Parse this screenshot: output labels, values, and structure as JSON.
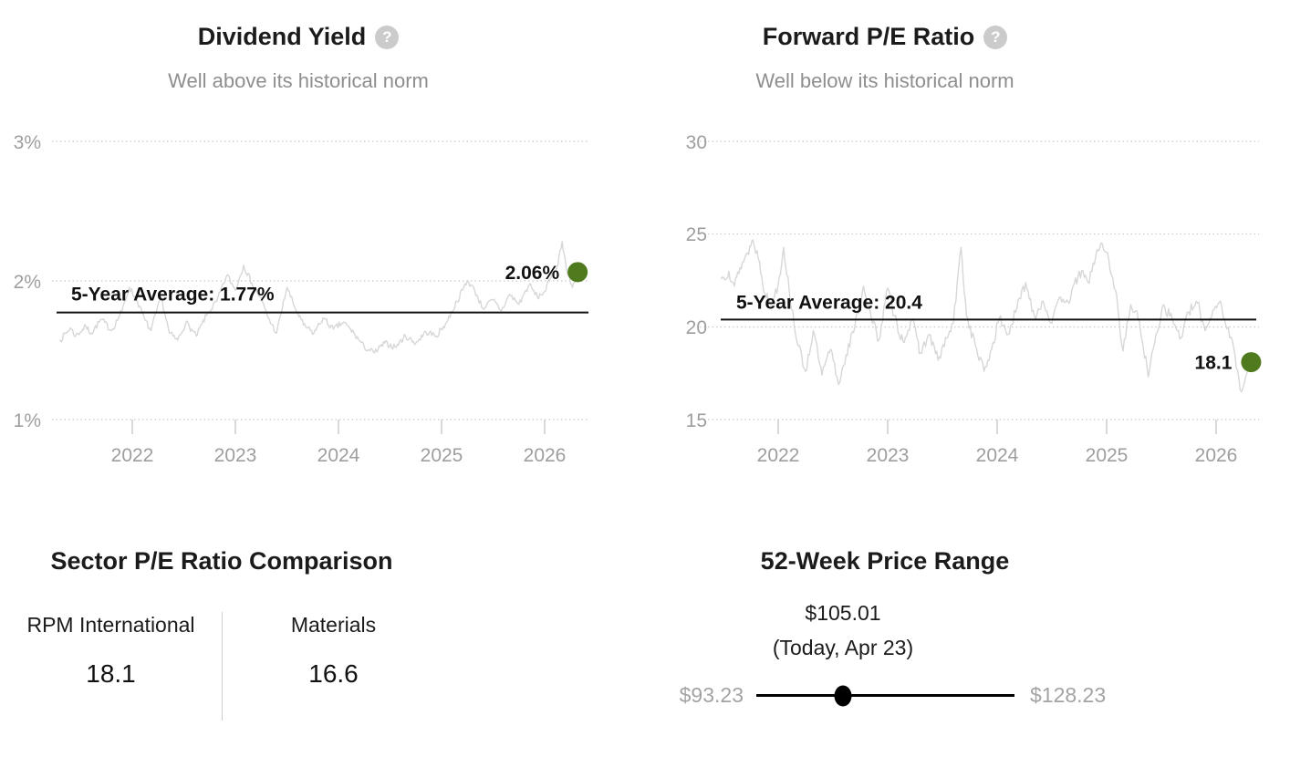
{
  "colors": {
    "accent_green": "#507a1e",
    "title_text": "#1b1b1b",
    "subtitle_text": "#8e8e8e",
    "axis_text": "#9e9e9e",
    "series_line": "#d7d7d7",
    "gridline": "#c9c9c9",
    "average_line": "#111111",
    "range_label": "#a3a3a3",
    "slider": "#000000"
  },
  "panels": {
    "dividend_yield": {
      "title": "Dividend Yield",
      "help_glyph": "?",
      "subtitle": "Well above its historical norm",
      "average_label": "5-Year Average: 1.77%",
      "current_label": "2.06%",
      "y_ticks": [
        "3%",
        "2%",
        "1%"
      ],
      "x_ticks": [
        "2022",
        "2023",
        "2024",
        "2025",
        "2026"
      ]
    },
    "forward_pe": {
      "title": "Forward P/E Ratio",
      "help_glyph": "?",
      "subtitle": "Well below its historical norm",
      "average_label": "5-Year Average: 20.4",
      "current_label": "18.1",
      "y_ticks": [
        "30",
        "25",
        "20",
        "15"
      ],
      "x_ticks": [
        "2022",
        "2023",
        "2024",
        "2025",
        "2026"
      ]
    },
    "sector_pe": {
      "title": "Sector P/E Ratio Comparison",
      "columns": [
        {
          "name": "RPM International",
          "value": "18.1"
        },
        {
          "name": "Materials",
          "value": "16.6"
        }
      ]
    },
    "price_range": {
      "title": "52-Week Price Range",
      "current_price": "$105.01",
      "current_caption": "(Today, Apr 23)",
      "low": "$93.23",
      "high": "$128.23"
    }
  },
  "chart_data": [
    {
      "id": "dividend_yield",
      "type": "line",
      "title": "Dividend Yield",
      "subtitle": "Well above its historical norm",
      "ylabel": "Dividend yield",
      "y_axis_ticks": [
        3,
        2,
        1
      ],
      "y_tick_suffix": "%",
      "x_axis_ticks": [
        2022,
        2023,
        2024,
        2025,
        2026
      ],
      "x_range": [
        2021.3,
        2026.32
      ],
      "ylim": [
        1,
        3
      ],
      "grid": "dotted-horizontal",
      "legend": "none",
      "average": 1.77,
      "average_label": "5-Year Average: 1.77%",
      "current": 2.06,
      "current_label": "2.06%",
      "noise_amplitude": 0.022,
      "series_anchors": [
        [
          2021.3,
          1.57
        ],
        [
          2021.4,
          1.66
        ],
        [
          2021.45,
          1.6
        ],
        [
          2021.55,
          1.67
        ],
        [
          2021.6,
          1.62
        ],
        [
          2021.7,
          1.72
        ],
        [
          2021.8,
          1.64
        ],
        [
          2021.9,
          1.78
        ],
        [
          2021.97,
          1.95
        ],
        [
          2022.05,
          1.85
        ],
        [
          2022.12,
          1.72
        ],
        [
          2022.18,
          1.64
        ],
        [
          2022.28,
          1.88
        ],
        [
          2022.36,
          1.62
        ],
        [
          2022.44,
          1.57
        ],
        [
          2022.52,
          1.7
        ],
        [
          2022.62,
          1.6
        ],
        [
          2022.72,
          1.75
        ],
        [
          2022.82,
          1.85
        ],
        [
          2022.92,
          2.04
        ],
        [
          2023.0,
          1.93
        ],
        [
          2023.08,
          2.11
        ],
        [
          2023.16,
          1.98
        ],
        [
          2023.24,
          1.88
        ],
        [
          2023.32,
          1.73
        ],
        [
          2023.4,
          1.62
        ],
        [
          2023.5,
          1.95
        ],
        [
          2023.58,
          1.8
        ],
        [
          2023.66,
          1.68
        ],
        [
          2023.76,
          1.62
        ],
        [
          2023.85,
          1.73
        ],
        [
          2023.95,
          1.65
        ],
        [
          2024.05,
          1.7
        ],
        [
          2024.15,
          1.62
        ],
        [
          2024.25,
          1.52
        ],
        [
          2024.35,
          1.48
        ],
        [
          2024.45,
          1.55
        ],
        [
          2024.55,
          1.52
        ],
        [
          2024.65,
          1.6
        ],
        [
          2024.75,
          1.55
        ],
        [
          2024.85,
          1.63
        ],
        [
          2024.95,
          1.6
        ],
        [
          2025.05,
          1.7
        ],
        [
          2025.15,
          1.85
        ],
        [
          2025.25,
          2.0
        ],
        [
          2025.32,
          1.93
        ],
        [
          2025.4,
          1.8
        ],
        [
          2025.5,
          1.86
        ],
        [
          2025.58,
          1.78
        ],
        [
          2025.66,
          1.9
        ],
        [
          2025.75,
          1.83
        ],
        [
          2025.85,
          1.97
        ],
        [
          2025.93,
          1.88
        ],
        [
          2026.0,
          1.92
        ],
        [
          2026.06,
          2.02
        ],
        [
          2026.12,
          2.1
        ],
        [
          2026.17,
          2.28
        ],
        [
          2026.22,
          2.05
        ],
        [
          2026.27,
          1.95
        ],
        [
          2026.32,
          2.06
        ]
      ]
    },
    {
      "id": "forward_pe",
      "type": "line",
      "title": "Forward P/E Ratio",
      "subtitle": "Well below its historical norm",
      "ylabel": "Forward P/E",
      "y_axis_ticks": [
        30,
        25,
        20,
        15
      ],
      "x_axis_ticks": [
        2022,
        2023,
        2024,
        2025,
        2026
      ],
      "x_range": [
        2021.48,
        2026.32
      ],
      "ylim": [
        15,
        30
      ],
      "grid": "dotted-horizontal",
      "legend": "none",
      "average": 20.4,
      "average_label": "5-Year Average: 20.4",
      "current": 18.1,
      "current_label": "18.1",
      "noise_amplitude": 0.3,
      "series_anchors": [
        [
          2021.48,
          22.6
        ],
        [
          2021.55,
          23.0
        ],
        [
          2021.6,
          22.2
        ],
        [
          2021.65,
          23.2
        ],
        [
          2021.72,
          24.0
        ],
        [
          2021.77,
          24.7
        ],
        [
          2021.83,
          23.5
        ],
        [
          2021.88,
          21.8
        ],
        [
          2021.93,
          21.2
        ],
        [
          2022.0,
          22.3
        ],
        [
          2022.05,
          24.3
        ],
        [
          2022.1,
          22.0
        ],
        [
          2022.18,
          19.0
        ],
        [
          2022.25,
          17.6
        ],
        [
          2022.32,
          19.8
        ],
        [
          2022.4,
          17.4
        ],
        [
          2022.48,
          18.8
        ],
        [
          2022.55,
          16.9
        ],
        [
          2022.62,
          18.5
        ],
        [
          2022.7,
          20.0
        ],
        [
          2022.78,
          22.2
        ],
        [
          2022.85,
          20.5
        ],
        [
          2022.92,
          19.3
        ],
        [
          2023.0,
          22.1
        ],
        [
          2023.06,
          20.6
        ],
        [
          2023.14,
          19.2
        ],
        [
          2023.22,
          20.4
        ],
        [
          2023.3,
          18.6
        ],
        [
          2023.38,
          19.6
        ],
        [
          2023.46,
          18.2
        ],
        [
          2023.54,
          19.4
        ],
        [
          2023.6,
          20.2
        ],
        [
          2023.67,
          24.3
        ],
        [
          2023.72,
          20.6
        ],
        [
          2023.8,
          19.0
        ],
        [
          2023.88,
          17.6
        ],
        [
          2023.95,
          18.8
        ],
        [
          2024.02,
          20.5
        ],
        [
          2024.1,
          19.6
        ],
        [
          2024.18,
          21.0
        ],
        [
          2024.26,
          22.4
        ],
        [
          2024.34,
          20.6
        ],
        [
          2024.42,
          21.4
        ],
        [
          2024.5,
          20.2
        ],
        [
          2024.58,
          21.6
        ],
        [
          2024.67,
          21.5
        ],
        [
          2024.75,
          23.0
        ],
        [
          2024.83,
          22.4
        ],
        [
          2024.9,
          23.8
        ],
        [
          2024.96,
          24.5
        ],
        [
          2025.02,
          23.6
        ],
        [
          2025.08,
          22.0
        ],
        [
          2025.15,
          18.7
        ],
        [
          2025.22,
          21.2
        ],
        [
          2025.3,
          20.3
        ],
        [
          2025.38,
          17.3
        ],
        [
          2025.45,
          19.6
        ],
        [
          2025.52,
          21.2
        ],
        [
          2025.6,
          20.4
        ],
        [
          2025.68,
          19.4
        ],
        [
          2025.75,
          20.8
        ],
        [
          2025.83,
          21.3
        ],
        [
          2025.9,
          19.8
        ],
        [
          2025.97,
          20.9
        ],
        [
          2026.04,
          21.4
        ],
        [
          2026.1,
          19.9
        ],
        [
          2026.16,
          18.9
        ],
        [
          2026.22,
          16.6
        ],
        [
          2026.28,
          17.5
        ],
        [
          2026.32,
          18.1
        ]
      ]
    },
    {
      "id": "sector_pe_comparison",
      "type": "table",
      "title": "Sector P/E Ratio Comparison",
      "categories": [
        "RPM International",
        "Materials"
      ],
      "values": [
        18.1,
        16.6
      ]
    },
    {
      "id": "price_range_52w",
      "type": "range",
      "title": "52-Week Price Range",
      "min": 93.23,
      "max": 128.23,
      "current": 105.01,
      "current_date": "Today, Apr 23"
    }
  ]
}
